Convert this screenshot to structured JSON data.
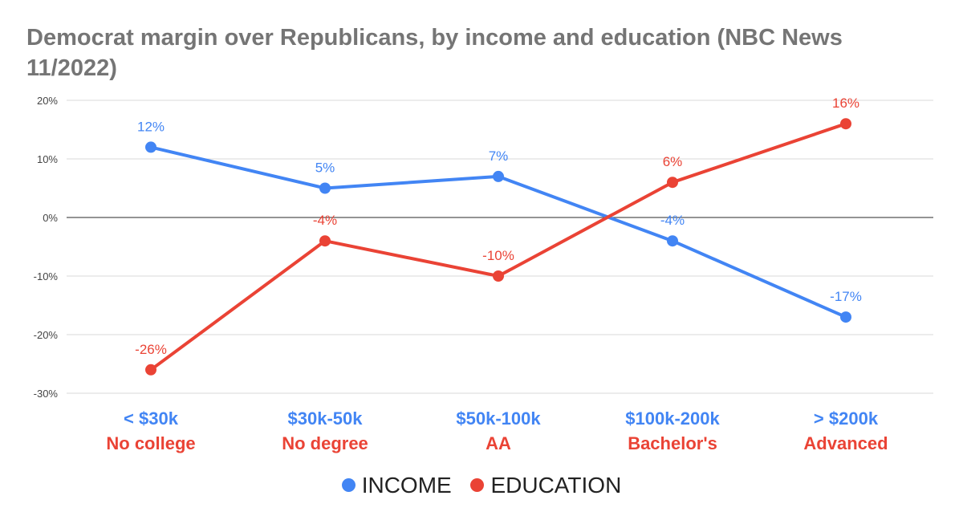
{
  "chart_data": {
    "type": "line",
    "title": "Democrat margin over Republicans, by income and education (NBC News 11/2022)",
    "xlabel": "",
    "ylabel": "",
    "ylim": [
      -30,
      20
    ],
    "yticks": [
      20,
      10,
      0,
      -10,
      -20,
      -30
    ],
    "ytick_labels": [
      "20%",
      "10%",
      "0%",
      "-10%",
      "-20%",
      "-30%"
    ],
    "grid": true,
    "legend_position": "bottom",
    "category_labels": [
      {
        "income": "< $30k",
        "education": "No college"
      },
      {
        "income": "$30k-50k",
        "education": "No degree"
      },
      {
        "income": "$50k-100k",
        "education": "AA"
      },
      {
        "income": "$100k-200k",
        "education": "Bachelor's"
      },
      {
        "income": "> $200k",
        "education": "Advanced"
      }
    ],
    "series": [
      {
        "name": "INCOME",
        "color": "#4285f4",
        "values": [
          12,
          5,
          7,
          -4,
          -17
        ],
        "labels": [
          "12%",
          "5%",
          "7%",
          "-4%",
          "-17%"
        ]
      },
      {
        "name": "EDUCATION",
        "color": "#ea4335",
        "values": [
          -26,
          -4,
          -10,
          6,
          16
        ],
        "labels": [
          "-26%",
          "-4%",
          "-10%",
          "6%",
          "16%"
        ]
      }
    ]
  }
}
